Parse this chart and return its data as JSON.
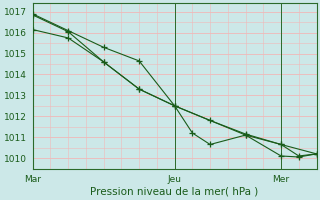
{
  "background_color": "#cce8e8",
  "grid_color": "#f0b8b8",
  "plot_bg_color": "#cce8e8",
  "line_color": "#1a5c1a",
  "marker_color": "#1a5c1a",
  "axis_color": "#2a6a2a",
  "tick_label_color": "#1a5c1a",
  "xlabel": "Pression niveau de la mer( hPa )",
  "xlabel_color": "#1a5c1a",
  "ylim": [
    1009.5,
    1017.4
  ],
  "yticks": [
    1010,
    1011,
    1012,
    1013,
    1014,
    1015,
    1016,
    1017
  ],
  "xlim": [
    0,
    16
  ],
  "xtick_positions": [
    0,
    8,
    14
  ],
  "xtick_labels": [
    "Mar",
    "Jeu",
    "Mer"
  ],
  "vline_positions": [
    8,
    14
  ],
  "series": [
    {
      "x": [
        0,
        2,
        4,
        6,
        8,
        9,
        10,
        12,
        14,
        15,
        16
      ],
      "y": [
        1016.9,
        1016.1,
        1015.3,
        1014.65,
        1012.5,
        1011.2,
        1010.65,
        1011.1,
        1010.1,
        1010.05,
        1010.2
      ]
    },
    {
      "x": [
        0,
        2,
        4,
        6,
        8,
        10,
        12,
        14,
        15,
        16
      ],
      "y": [
        1016.15,
        1015.75,
        1014.6,
        1013.3,
        1012.5,
        1011.8,
        1011.15,
        1010.65,
        1010.1,
        1010.2
      ]
    },
    {
      "x": [
        0,
        2,
        4,
        6,
        8,
        12,
        14,
        16
      ],
      "y": [
        1016.85,
        1016.05,
        1014.6,
        1013.3,
        1012.5,
        1011.1,
        1010.65,
        1010.2
      ]
    }
  ]
}
